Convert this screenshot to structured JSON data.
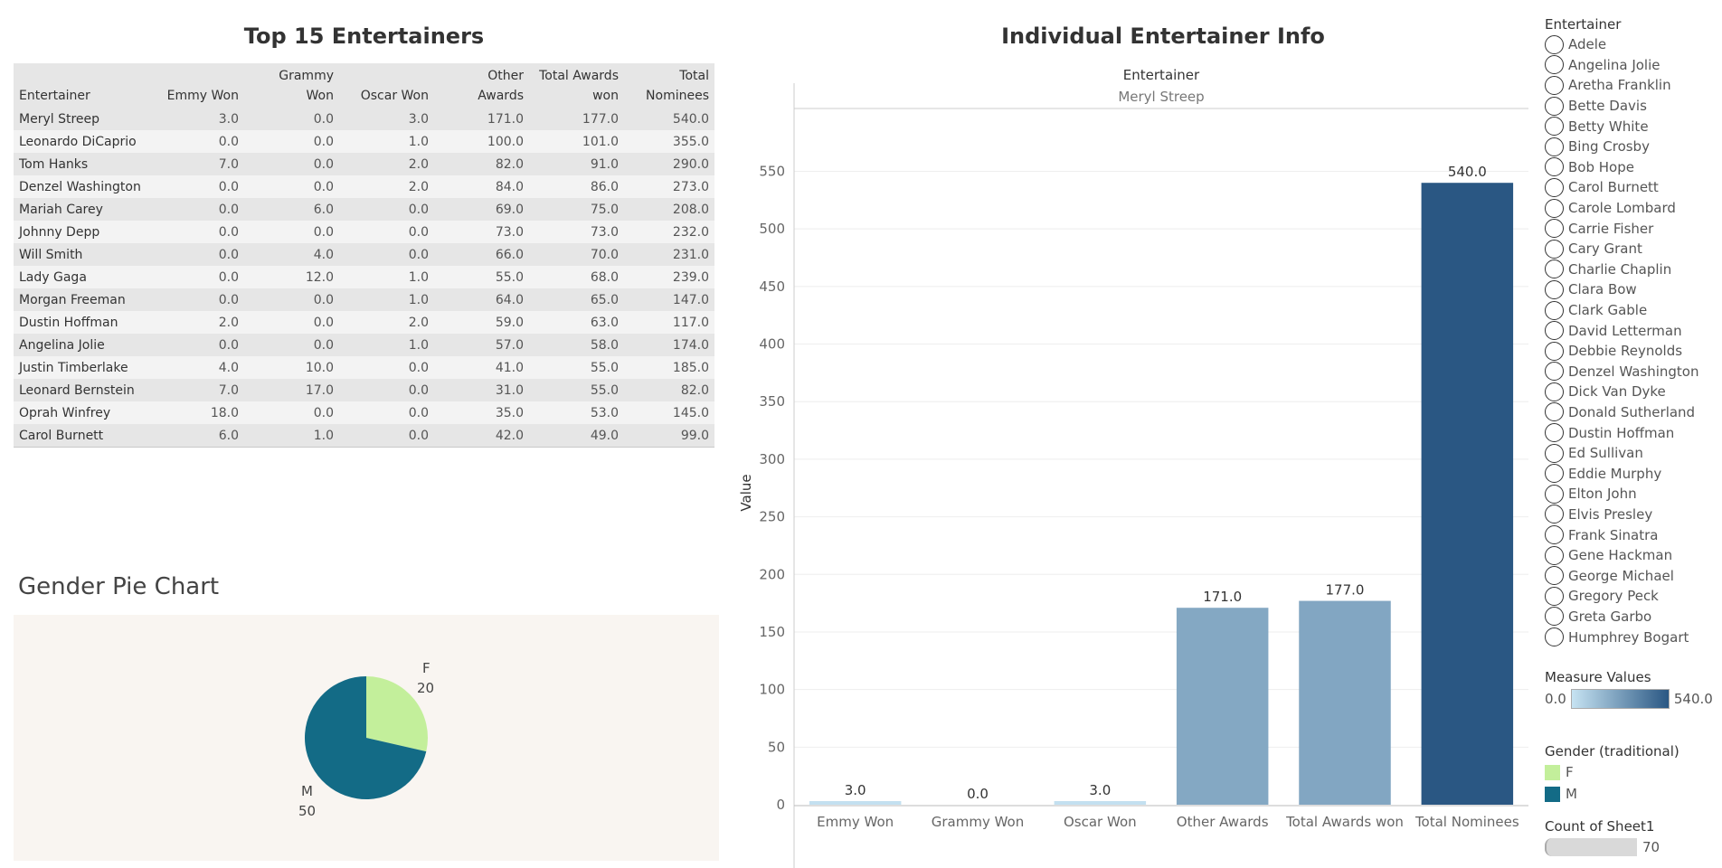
{
  "table": {
    "title": "Top 15 Entertainers",
    "columns": [
      [
        "Entertainer"
      ],
      [
        "Emmy Won"
      ],
      [
        "Grammy",
        "Won"
      ],
      [
        "Oscar Won"
      ],
      [
        "Other",
        "Awards"
      ],
      [
        "Total Awards",
        "won"
      ],
      [
        "Total",
        "Nominees"
      ]
    ],
    "rows": [
      [
        "Meryl Streep",
        "3.0",
        "0.0",
        "3.0",
        "171.0",
        "177.0",
        "540.0"
      ],
      [
        "Leonardo DiCaprio",
        "0.0",
        "0.0",
        "1.0",
        "100.0",
        "101.0",
        "355.0"
      ],
      [
        "Tom Hanks",
        "7.0",
        "0.0",
        "2.0",
        "82.0",
        "91.0",
        "290.0"
      ],
      [
        "Denzel Washington",
        "0.0",
        "0.0",
        "2.0",
        "84.0",
        "86.0",
        "273.0"
      ],
      [
        "Mariah Carey",
        "0.0",
        "6.0",
        "0.0",
        "69.0",
        "75.0",
        "208.0"
      ],
      [
        "Johnny Depp",
        "0.0",
        "0.0",
        "0.0",
        "73.0",
        "73.0",
        "232.0"
      ],
      [
        "Will Smith",
        "0.0",
        "4.0",
        "0.0",
        "66.0",
        "70.0",
        "231.0"
      ],
      [
        "Lady Gaga",
        "0.0",
        "12.0",
        "1.0",
        "55.0",
        "68.0",
        "239.0"
      ],
      [
        "Morgan Freeman",
        "0.0",
        "0.0",
        "1.0",
        "64.0",
        "65.0",
        "147.0"
      ],
      [
        "Dustin Hoffman",
        "2.0",
        "0.0",
        "2.0",
        "59.0",
        "63.0",
        "117.0"
      ],
      [
        "Angelina Jolie",
        "0.0",
        "0.0",
        "1.0",
        "57.0",
        "58.0",
        "174.0"
      ],
      [
        "Justin Timberlake",
        "4.0",
        "10.0",
        "0.0",
        "41.0",
        "55.0",
        "185.0"
      ],
      [
        "Leonard Bernstein",
        "7.0",
        "17.0",
        "0.0",
        "31.0",
        "55.0",
        "82.0"
      ],
      [
        "Oprah Winfrey",
        "18.0",
        "0.0",
        "0.0",
        "35.0",
        "53.0",
        "145.0"
      ],
      [
        "Carol Burnett",
        "6.0",
        "1.0",
        "0.0",
        "42.0",
        "49.0",
        "99.0"
      ]
    ]
  },
  "pie": {
    "title": "Gender Pie Chart",
    "slices": [
      {
        "label": "F",
        "value": 20,
        "color": "#c3ef9b"
      },
      {
        "label": "M",
        "value": 50,
        "color": "#136b86"
      }
    ]
  },
  "bar_section": {
    "title": "Individual Entertainer Info",
    "header_label": "Entertainer",
    "selected": "Meryl Streep",
    "ylabel": "Value"
  },
  "chart_data": [
    {
      "type": "bar",
      "title": "Individual Entertainer Info",
      "categories": [
        "Emmy Won",
        "Grammy Won",
        "Oscar Won",
        "Other Awards",
        "Total Awards won",
        "Total Nominees"
      ],
      "values": [
        3.0,
        0.0,
        3.0,
        171.0,
        177.0,
        540.0
      ],
      "value_labels": [
        "3.0",
        "0.0",
        "3.0",
        "171.0",
        "177.0",
        "540.0"
      ],
      "xlabel": "",
      "ylabel": "Value",
      "ylim": [
        0,
        570
      ],
      "yticks": [
        0,
        50,
        100,
        150,
        200,
        250,
        300,
        350,
        400,
        450,
        500,
        550
      ],
      "color_scale": [
        "#c6e3f2",
        "#2a5783"
      ],
      "grid": true
    },
    {
      "type": "pie",
      "title": "Gender Pie Chart",
      "categories": [
        "F",
        "M"
      ],
      "values": [
        20,
        50
      ],
      "colors": [
        "#c3ef9b",
        "#136b86"
      ]
    }
  ],
  "legend": {
    "entertainer_title": "Entertainer",
    "entertainers": [
      "Adele",
      "Angelina Jolie",
      "Aretha Franklin",
      "Bette Davis",
      "Betty White",
      "Bing Crosby",
      "Bob Hope",
      "Carol Burnett",
      "Carole Lombard",
      "Carrie Fisher",
      "Cary Grant",
      "Charlie Chaplin",
      "Clara Bow",
      "Clark Gable",
      "David Letterman",
      "Debbie Reynolds",
      "Denzel Washington",
      "Dick Van Dyke",
      "Donald Sutherland",
      "Dustin Hoffman",
      "Ed Sullivan",
      "Eddie Murphy",
      "Elton John",
      "Elvis Presley",
      "Frank Sinatra",
      "Gene Hackman",
      "George Michael",
      "Gregory Peck",
      "Greta Garbo",
      "Humphrey Bogart"
    ],
    "measure_title": "Measure Values",
    "measure_min": "0.0",
    "measure_max": "540.0",
    "gender_title": "Gender (traditional)",
    "genders": [
      {
        "label": "F",
        "color": "#c3ef9b"
      },
      {
        "label": "M",
        "color": "#136b86"
      }
    ],
    "count_title": "Count of Sheet1",
    "count_value": "70"
  }
}
